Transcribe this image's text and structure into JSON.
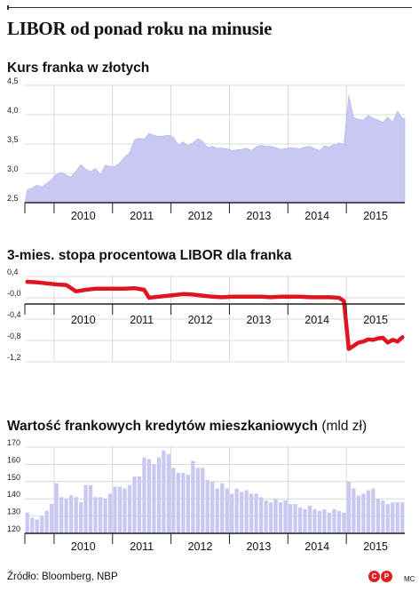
{
  "title": "LIBOR od ponad roku na minusie",
  "source": "Źródło: Bloomberg, NBP",
  "author": "MC",
  "logo_text": [
    "C",
    "P"
  ],
  "colors": {
    "area_fill": "#c9c8f2",
    "bar_fill": "#c9c8f2",
    "line": "#e0141e",
    "axis": "#222222",
    "grid": "#cfcfcf",
    "logo": "#e02020"
  },
  "chart_data": [
    {
      "type": "area",
      "title": "Kurs franka w złotych",
      "x_labels": [
        "2010",
        "2011",
        "2012",
        "2013",
        "2014",
        "2015"
      ],
      "x_range": [
        "2009-07",
        "2015-12"
      ],
      "ylim": [
        2.5,
        4.5
      ],
      "y_ticks": [
        "2,5",
        "3,0",
        "3,5",
        "4,0",
        "4,5"
      ],
      "y_tick_values": [
        2.5,
        3.0,
        3.5,
        4.0,
        4.5
      ],
      "grid": true,
      "x": [
        "2009-07",
        "2009-08",
        "2009-09",
        "2009-10",
        "2009-11",
        "2009-12",
        "2010-01",
        "2010-02",
        "2010-03",
        "2010-04",
        "2010-05",
        "2010-06",
        "2010-07",
        "2010-08",
        "2010-09",
        "2010-10",
        "2010-11",
        "2010-12",
        "2011-01",
        "2011-02",
        "2011-03",
        "2011-04",
        "2011-05",
        "2011-06",
        "2011-07",
        "2011-08",
        "2011-09",
        "2011-10",
        "2011-11",
        "2011-12",
        "2012-01",
        "2012-02",
        "2012-03",
        "2012-04",
        "2012-05",
        "2012-06",
        "2012-07",
        "2012-08",
        "2012-09",
        "2012-10",
        "2012-11",
        "2012-12",
        "2013-01",
        "2013-02",
        "2013-03",
        "2013-04",
        "2013-05",
        "2013-06",
        "2013-07",
        "2013-08",
        "2013-09",
        "2013-10",
        "2013-11",
        "2013-12",
        "2014-01",
        "2014-02",
        "2014-03",
        "2014-04",
        "2014-05",
        "2014-06",
        "2014-07",
        "2014-08",
        "2014-09",
        "2014-10",
        "2014-11",
        "2014-12",
        "2015-01",
        "2015-02",
        "2015-03",
        "2015-04",
        "2015-05",
        "2015-06",
        "2015-07",
        "2015-08",
        "2015-09",
        "2015-10",
        "2015-11",
        "2015-12"
      ],
      "values": [
        2.72,
        2.75,
        2.8,
        2.77,
        2.83,
        2.9,
        2.98,
        3.02,
        2.97,
        2.94,
        3.04,
        3.15,
        3.07,
        3.03,
        3.08,
        2.98,
        3.14,
        3.12,
        3.12,
        3.18,
        3.28,
        3.35,
        3.57,
        3.6,
        3.58,
        3.68,
        3.65,
        3.63,
        3.64,
        3.65,
        3.62,
        3.48,
        3.54,
        3.47,
        3.52,
        3.59,
        3.55,
        3.44,
        3.46,
        3.43,
        3.43,
        3.42,
        3.39,
        3.4,
        3.41,
        3.43,
        3.39,
        3.45,
        3.48,
        3.46,
        3.46,
        3.44,
        3.41,
        3.42,
        3.44,
        3.43,
        3.42,
        3.45,
        3.46,
        3.42,
        3.39,
        3.47,
        3.45,
        3.49,
        3.52,
        3.5,
        4.33,
        3.95,
        3.92,
        3.91,
        3.99,
        3.94,
        3.91,
        3.87,
        3.96,
        3.87,
        4.06,
        3.94
      ]
    },
    {
      "type": "line",
      "title": "3-mies. stopa procentowa LIBOR dla franka",
      "x_labels": [
        "2010",
        "2011",
        "2012",
        "2013",
        "2014",
        "2015"
      ],
      "x_range": [
        "2009-07",
        "2015-12"
      ],
      "ylim": [
        -1.2,
        0.4
      ],
      "y_ticks": [
        "0,4",
        "-0,0",
        "-0,4",
        "-0,8",
        "-1,2"
      ],
      "y_tick_values": [
        0.4,
        0.0,
        -0.4,
        -0.8,
        -1.2
      ],
      "grid": true,
      "x": [
        "2009-07",
        "2009-09",
        "2009-11",
        "2010-01",
        "2010-03",
        "2010-05",
        "2010-07",
        "2010-09",
        "2010-11",
        "2011-01",
        "2011-03",
        "2011-05",
        "2011-07",
        "2011-08",
        "2011-09",
        "2011-11",
        "2012-01",
        "2012-03",
        "2012-05",
        "2012-07",
        "2012-09",
        "2012-11",
        "2013-01",
        "2013-03",
        "2013-05",
        "2013-07",
        "2013-09",
        "2013-11",
        "2014-01",
        "2014-03",
        "2014-05",
        "2014-07",
        "2014-09",
        "2014-11",
        "2014-12",
        "2015-01",
        "2015-02",
        "2015-03",
        "2015-04",
        "2015-05",
        "2015-06",
        "2015-07",
        "2015-08",
        "2015-09",
        "2015-10",
        "2015-11",
        "2015-12"
      ],
      "values": [
        0.3,
        0.29,
        0.27,
        0.25,
        0.24,
        0.12,
        0.15,
        0.17,
        0.17,
        0.17,
        0.17,
        0.18,
        0.15,
        0.0,
        0.01,
        0.03,
        0.05,
        0.07,
        0.06,
        0.04,
        0.02,
        0.01,
        0.02,
        0.02,
        0.02,
        0.02,
        0.01,
        0.02,
        0.02,
        0.02,
        0.01,
        0.01,
        0.01,
        0.0,
        -0.06,
        -0.96,
        -0.9,
        -0.84,
        -0.82,
        -0.78,
        -0.79,
        -0.76,
        -0.75,
        -0.84,
        -0.79,
        -0.82,
        -0.74
      ]
    },
    {
      "type": "bar",
      "title": "Wartość frankowych kredytów mieszkaniowych",
      "unit": "(mld zł)",
      "x_labels": [
        "2010",
        "2011",
        "2012",
        "2013",
        "2014",
        "2015"
      ],
      "x_range": [
        "2009-07",
        "2015-12"
      ],
      "ylim": [
        120,
        170
      ],
      "y_ticks": [
        "120",
        "130",
        "140",
        "150",
        "160",
        "170"
      ],
      "y_tick_values": [
        120,
        130,
        140,
        150,
        160,
        170
      ],
      "grid": true,
      "x": [
        "2009-07",
        "2009-08",
        "2009-09",
        "2009-10",
        "2009-11",
        "2009-12",
        "2010-01",
        "2010-02",
        "2010-03",
        "2010-04",
        "2010-05",
        "2010-06",
        "2010-07",
        "2010-08",
        "2010-09",
        "2010-10",
        "2010-11",
        "2010-12",
        "2011-01",
        "2011-02",
        "2011-03",
        "2011-04",
        "2011-05",
        "2011-06",
        "2011-07",
        "2011-08",
        "2011-09",
        "2011-10",
        "2011-11",
        "2011-12",
        "2012-01",
        "2012-02",
        "2012-03",
        "2012-04",
        "2012-05",
        "2012-06",
        "2012-07",
        "2012-08",
        "2012-09",
        "2012-10",
        "2012-11",
        "2012-12",
        "2013-01",
        "2013-02",
        "2013-03",
        "2013-04",
        "2013-05",
        "2013-06",
        "2013-07",
        "2013-08",
        "2013-09",
        "2013-10",
        "2013-11",
        "2013-12",
        "2014-01",
        "2014-02",
        "2014-03",
        "2014-04",
        "2014-05",
        "2014-06",
        "2014-07",
        "2014-08",
        "2014-09",
        "2014-10",
        "2014-11",
        "2014-12",
        "2015-01",
        "2015-02",
        "2015-03",
        "2015-04",
        "2015-05",
        "2015-06",
        "2015-07",
        "2015-08",
        "2015-09",
        "2015-10",
        "2015-11",
        "2015-12"
      ],
      "values": [
        132,
        129,
        128,
        130,
        133,
        137,
        149,
        141,
        140,
        142,
        141,
        138,
        148,
        148,
        141,
        141,
        140,
        143,
        147,
        147,
        146,
        148,
        153,
        153,
        164,
        163,
        160,
        164,
        168,
        166,
        158,
        155,
        155,
        154,
        162,
        158,
        158,
        151,
        150,
        146,
        149,
        146,
        143,
        146,
        144,
        145,
        143,
        143,
        141,
        139,
        138,
        140,
        138,
        139,
        137,
        137,
        135,
        134,
        136,
        134,
        133,
        134,
        132,
        134,
        133,
        132,
        150,
        146,
        142,
        143,
        145,
        146,
        140,
        139,
        137,
        138,
        138,
        138
      ]
    }
  ]
}
